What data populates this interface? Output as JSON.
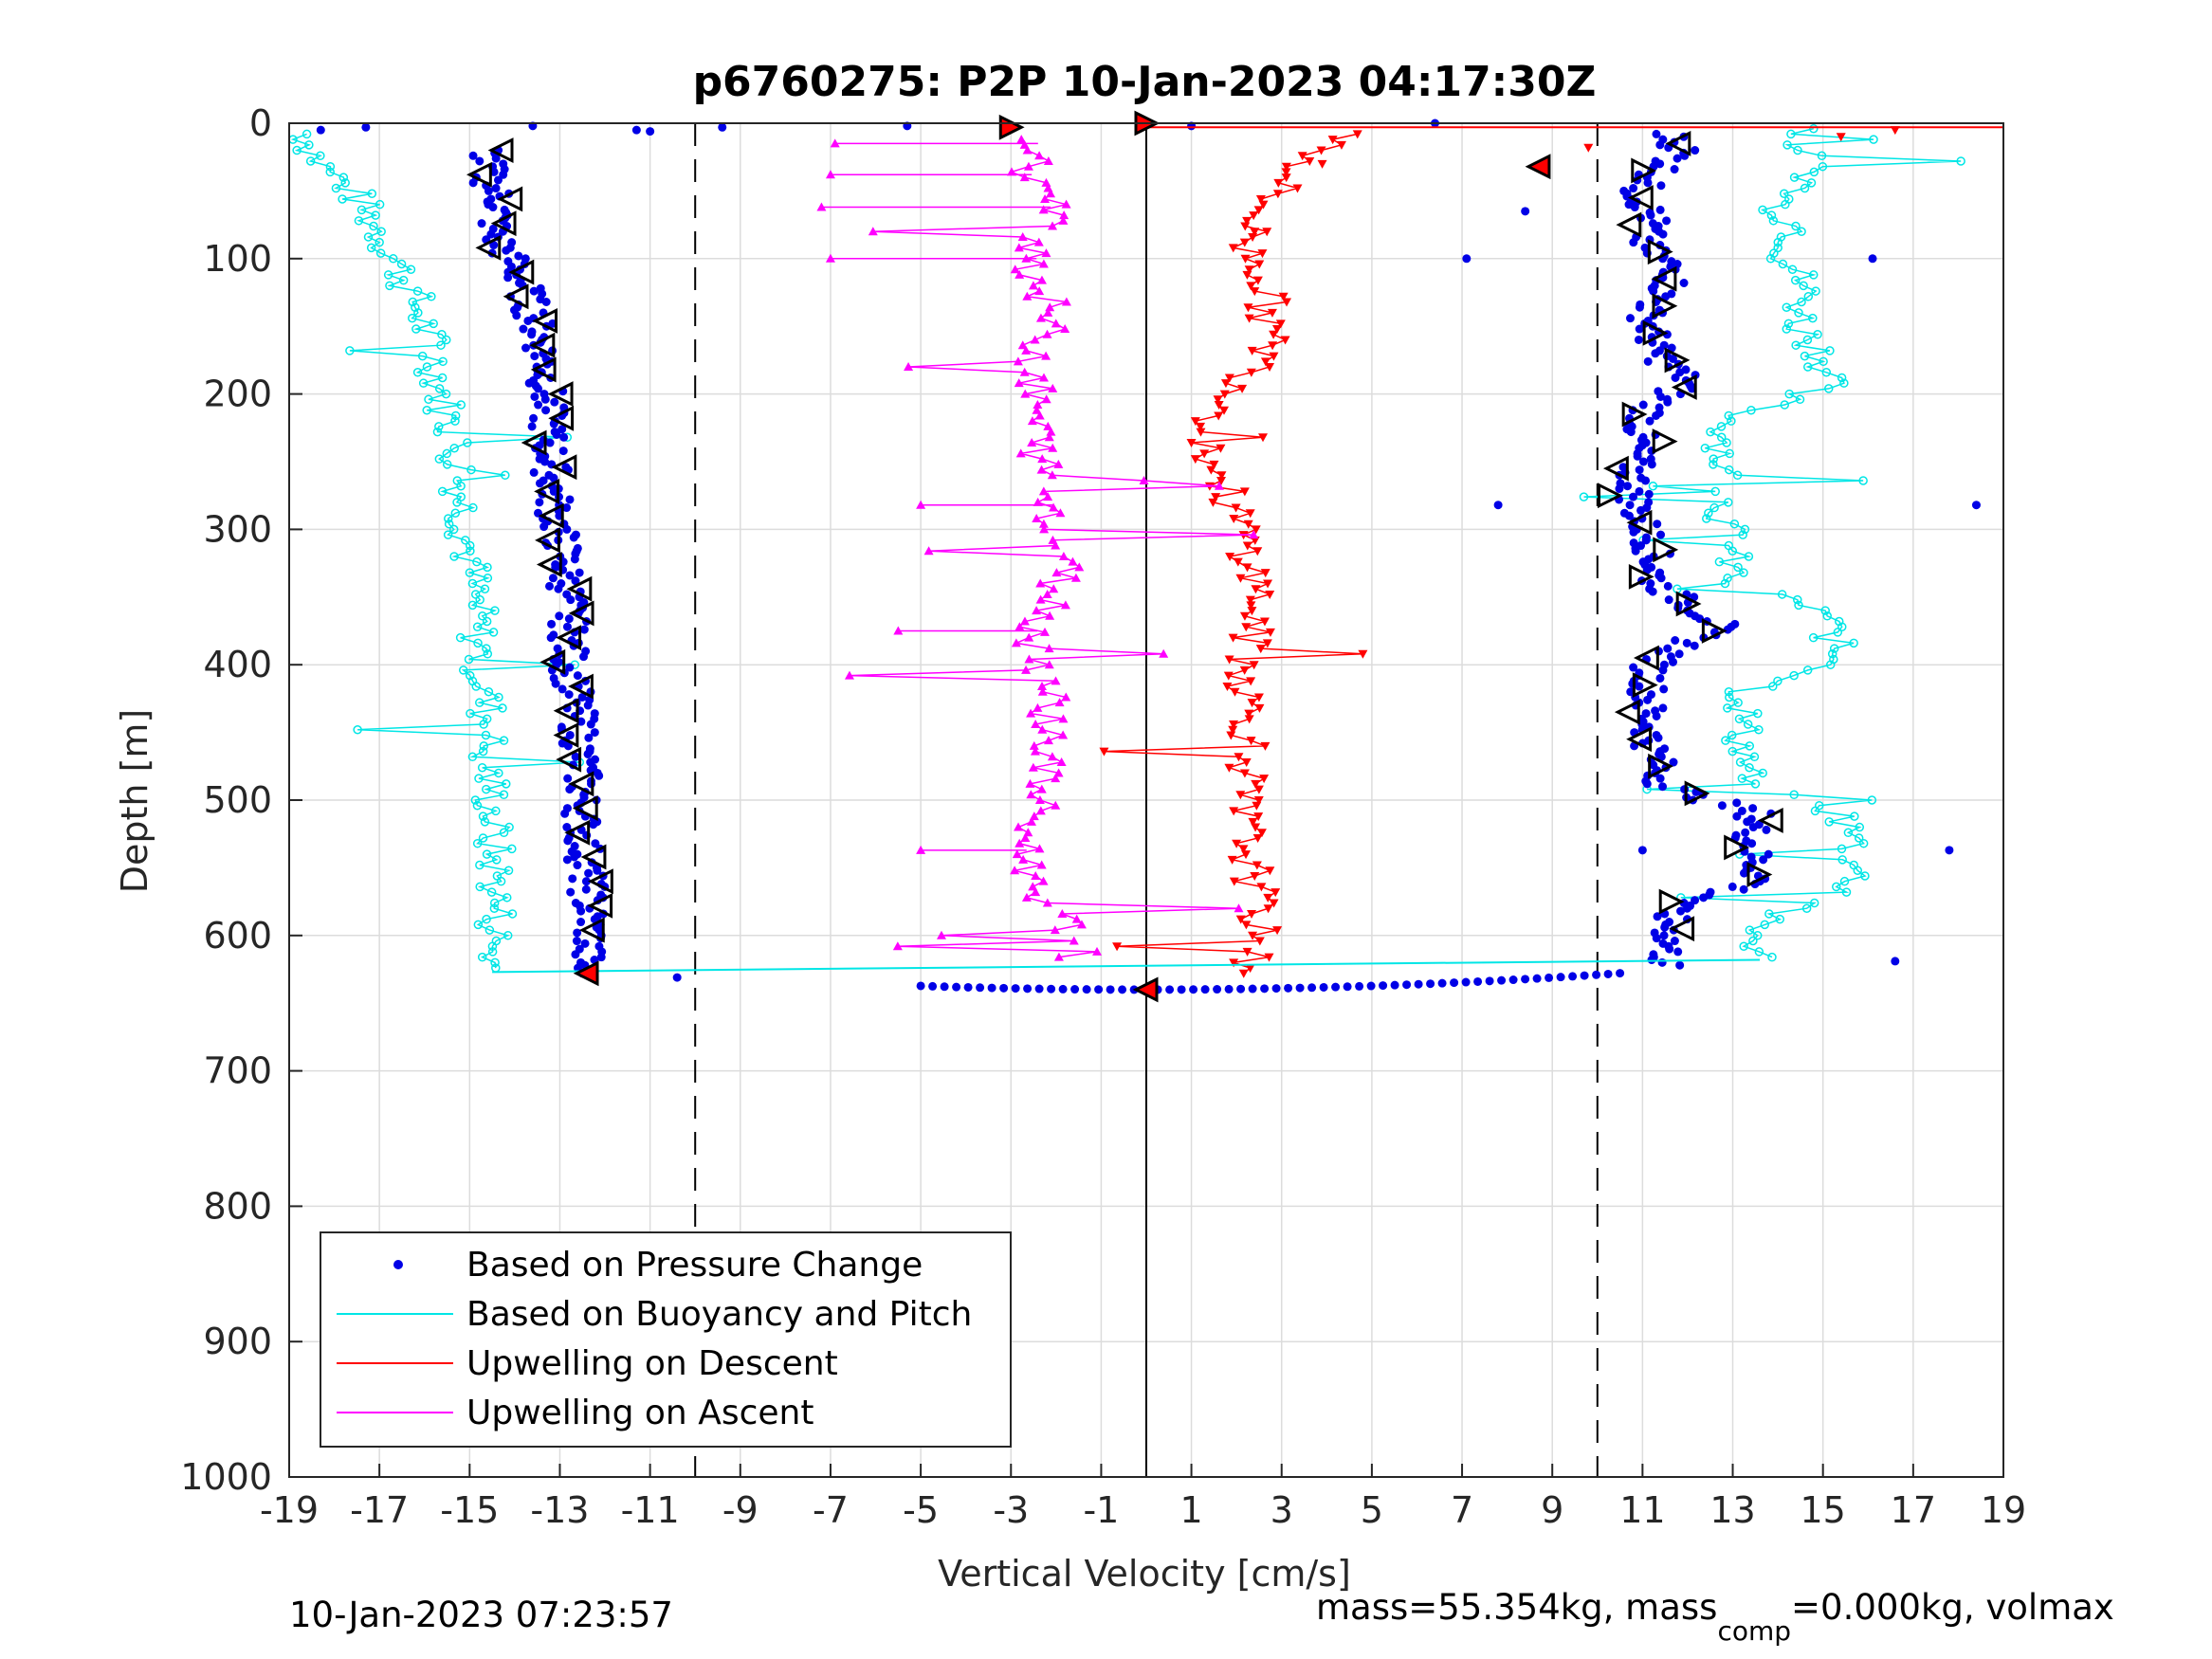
{
  "chart_data": {
    "type": "scatter",
    "title": "p6760275: P2P 10-Jan-2023 04:17:30Z",
    "xlabel": "Vertical Velocity [cm/s]",
    "ylabel": "Depth [m]",
    "xlim": [
      -19,
      19
    ],
    "ylim": [
      0,
      1000
    ],
    "y_reversed": true,
    "grid": true,
    "x_ticks": [
      "-19",
      "-17",
      "-15",
      "-13",
      "-11",
      "-9",
      "-7",
      "-5",
      "-3",
      "-1",
      "1",
      "3",
      "5",
      "7",
      "9",
      "11",
      "13",
      "15",
      "17",
      "19"
    ],
    "y_ticks": [
      "0",
      "100",
      "200",
      "300",
      "400",
      "500",
      "600",
      "700",
      "800",
      "900",
      "1000"
    ],
    "reference_lines": {
      "zero": 0,
      "dashed": [
        -10,
        10
      ]
    },
    "legend_placement": "bottom-left",
    "colors": {
      "pressure": "#0000e6",
      "buoyancy": "#00e6e6",
      "descent": "#ff0000",
      "ascent": "#ff00ff",
      "grid": "#dcdcdc",
      "axis": "#262626"
    },
    "series": [
      {
        "name": "Based on Pressure Change",
        "style": "dots",
        "description_key": "pressure",
        "descent_points": [
          [
            -14.6,
            40
          ],
          [
            -14.3,
            60
          ],
          [
            -14.5,
            80
          ],
          [
            -14.1,
            100
          ],
          [
            -13.8,
            120
          ],
          [
            -13.5,
            150
          ],
          [
            -13.3,
            180
          ],
          [
            -13.3,
            210
          ],
          [
            -13.2,
            250
          ],
          [
            -13.1,
            290
          ],
          [
            -12.9,
            320
          ],
          [
            -12.8,
            360
          ],
          [
            -12.8,
            400
          ],
          [
            -12.6,
            440
          ],
          [
            -12.5,
            480
          ],
          [
            -12.5,
            520
          ],
          [
            -12.4,
            560
          ],
          [
            -12.3,
            600
          ],
          [
            -12.5,
            625
          ]
        ],
        "ascent_points": [
          [
            11.5,
            620
          ],
          [
            11.6,
            600
          ],
          [
            11.6,
            580
          ],
          [
            13.6,
            560
          ],
          [
            13.4,
            530
          ],
          [
            13.5,
            510
          ],
          [
            11.5,
            490
          ],
          [
            11.2,
            460
          ],
          [
            11.1,
            430
          ],
          [
            11.2,
            400
          ],
          [
            12.7,
            370
          ],
          [
            11.3,
            340
          ],
          [
            11.2,
            310
          ],
          [
            10.9,
            290
          ],
          [
            10.8,
            260
          ],
          [
            10.9,
            230
          ],
          [
            11.2,
            210
          ],
          [
            12.0,
            190
          ],
          [
            11.3,
            170
          ],
          [
            11.1,
            140
          ],
          [
            11.8,
            110
          ],
          [
            11.0,
            90
          ],
          [
            11.2,
            70
          ],
          [
            10.9,
            50
          ],
          [
            11.9,
            20
          ],
          [
            11.6,
            10
          ]
        ],
        "bottom_points": [
          [
            -5,
            633
          ],
          [
            -3,
            638
          ],
          [
            -1,
            640
          ],
          [
            1,
            640
          ],
          [
            3,
            640
          ],
          [
            5,
            638
          ],
          [
            7,
            636
          ],
          [
            9,
            633
          ],
          [
            10.5,
            629
          ]
        ]
      },
      {
        "name": "Based on Buoyancy and Pitch",
        "style": "line",
        "description_key": "buoyancy",
        "descent_points": [
          [
            -18.6,
            10
          ],
          [
            -18.3,
            30
          ],
          [
            -17.6,
            50
          ],
          [
            -17.0,
            80
          ],
          [
            -16.5,
            110
          ],
          [
            -16.1,
            140
          ],
          [
            -15.8,
            170
          ],
          [
            -15.6,
            200
          ],
          [
            -15.4,
            230
          ],
          [
            -15.2,
            260
          ],
          [
            -15.1,
            290
          ],
          [
            -15.0,
            320
          ],
          [
            -14.9,
            350
          ],
          [
            -14.8,
            380
          ],
          [
            -14.7,
            410
          ],
          [
            -14.6,
            440
          ],
          [
            -14.6,
            470
          ],
          [
            -14.5,
            500
          ],
          [
            -14.5,
            530
          ],
          [
            -14.4,
            560
          ],
          [
            -14.4,
            590
          ],
          [
            -14.5,
            620
          ]
        ],
        "ascent_points": [
          [
            13.6,
            615
          ],
          [
            13.4,
            590
          ],
          [
            15.6,
            570
          ],
          [
            15.8,
            540
          ],
          [
            15.4,
            510
          ],
          [
            13.3,
            490
          ],
          [
            13.3,
            470
          ],
          [
            13.2,
            450
          ],
          [
            13.3,
            420
          ],
          [
            15.4,
            400
          ],
          [
            15.2,
            380
          ],
          [
            15.0,
            360
          ],
          [
            13.0,
            340
          ],
          [
            12.9,
            310
          ],
          [
            12.8,
            280
          ],
          [
            12.8,
            250
          ],
          [
            12.9,
            220
          ],
          [
            15.2,
            190
          ],
          [
            15.0,
            170
          ],
          [
            14.5,
            150
          ],
          [
            14.6,
            120
          ],
          [
            14.2,
            100
          ],
          [
            14.5,
            80
          ],
          [
            14.0,
            60
          ],
          [
            14.8,
            40
          ],
          [
            14.5,
            20
          ],
          [
            14.8,
            5
          ]
        ]
      },
      {
        "name": "Upwelling on Descent",
        "style": "line-triangle-down",
        "description_key": "descent",
        "points": [
          [
            4.5,
            10
          ],
          [
            3.5,
            30
          ],
          [
            2.6,
            60
          ],
          [
            2.2,
            90
          ],
          [
            2.6,
            110
          ],
          [
            2.7,
            140
          ],
          [
            2.7,
            170
          ],
          [
            2.0,
            200
          ],
          [
            1.3,
            230
          ],
          [
            1.6,
            260
          ],
          [
            2.0,
            290
          ],
          [
            2.3,
            320
          ],
          [
            2.5,
            350
          ],
          [
            2.3,
            380
          ],
          [
            2.2,
            410
          ],
          [
            2.3,
            440
          ],
          [
            2.3,
            470
          ],
          [
            2.1,
            500
          ],
          [
            2.2,
            530
          ],
          [
            2.4,
            560
          ],
          [
            2.5,
            590
          ],
          [
            2.3,
            620
          ],
          [
            1.8,
            628
          ]
        ]
      },
      {
        "name": "Upwelling on Ascent",
        "style": "line-triangle-up",
        "description_key": "ascent",
        "points": [
          [
            -1.5,
            615
          ],
          [
            -1.8,
            590
          ],
          [
            -2.5,
            560
          ],
          [
            -2.7,
            530
          ],
          [
            -2.4,
            500
          ],
          [
            -2.2,
            470
          ],
          [
            -2.1,
            440
          ],
          [
            -2.2,
            410
          ],
          [
            -2.5,
            380
          ],
          [
            -2.0,
            350
          ],
          [
            -1.8,
            320
          ],
          [
            -2.0,
            290
          ],
          [
            -2.3,
            260
          ],
          [
            -2.4,
            230
          ],
          [
            -2.5,
            200
          ],
          [
            -2.4,
            170
          ],
          [
            -2.1,
            140
          ],
          [
            -2.5,
            110
          ],
          [
            -2.3,
            80
          ],
          [
            -2.1,
            60
          ],
          [
            -2.6,
            35
          ],
          [
            -2.4,
            15
          ]
        ]
      }
    ]
  },
  "legend": {
    "items": [
      {
        "label": "Based on Pressure Change",
        "kind": "dot",
        "color": "#0000e6"
      },
      {
        "label": "Based on Buoyancy and Pitch",
        "kind": "line",
        "color": "#00e6e6"
      },
      {
        "label": "Upwelling on Descent",
        "kind": "line",
        "color": "#ff0000"
      },
      {
        "label": "Upwelling on Ascent",
        "kind": "line",
        "color": "#ff00ff"
      }
    ]
  },
  "footer": {
    "timestamp": "10-Jan-2023 07:23:57",
    "mass_prefix": "mass=55.354kg, mass",
    "mass_sub": "comp",
    "mass_suffix": "=0.000kg, volmax"
  }
}
